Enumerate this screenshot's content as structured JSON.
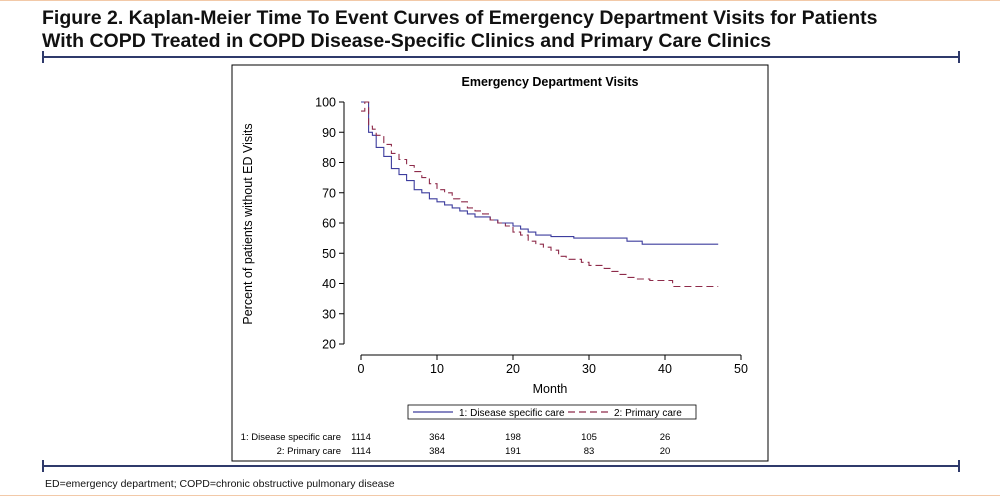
{
  "figure": {
    "title_line1": "Figure 2. Kaplan-Meier Time To Event Curves of Emergency Department Visits for Patients",
    "title_line2": "With COPD Treated in COPD Disease-Specific Clinics and Primary Care Clinics",
    "footnote": "ED=emergency department; COPD=chronic obstructive pulmonary disease"
  },
  "colors": {
    "rule": "#2f3a6b",
    "series_1": "#3d3d9e",
    "series_2": "#8e2b4a"
  },
  "chart_data": {
    "type": "line",
    "title": "Emergency Department Visits",
    "xlabel": "Month",
    "ylabel": "Percent of patients without ED Visits",
    "xlim": [
      0,
      50
    ],
    "ylim": [
      20,
      100
    ],
    "xticks": [
      0,
      10,
      20,
      30,
      40,
      50
    ],
    "yticks": [
      20,
      30,
      40,
      50,
      60,
      70,
      80,
      90,
      100
    ],
    "grid": false,
    "legend_position": "bottom",
    "series": [
      {
        "name": "1: Disease specific care",
        "style": "solid",
        "x": [
          0,
          0.5,
          1,
          1.5,
          2,
          3,
          4,
          5,
          6,
          7,
          8,
          9,
          10,
          11,
          12,
          13,
          14,
          15,
          16,
          17,
          18,
          19,
          20,
          21,
          22,
          23,
          24,
          25,
          26,
          27,
          28,
          29,
          30,
          31,
          32,
          33,
          34,
          35,
          36,
          37,
          38,
          39,
          40,
          41,
          42,
          43,
          44,
          45,
          46,
          47
        ],
        "y": [
          100,
          100,
          90,
          89,
          85,
          82,
          78,
          76,
          74,
          71,
          70,
          68,
          67,
          66,
          65,
          64,
          63,
          62,
          62,
          61,
          60,
          60,
          59,
          58,
          57,
          56,
          56,
          55.5,
          55.5,
          55.5,
          55,
          55,
          55,
          55,
          55,
          55,
          55,
          54,
          54,
          53,
          53,
          53,
          53,
          53,
          53,
          53,
          53,
          53,
          53,
          53
        ]
      },
      {
        "name": "2: Primary care",
        "style": "dashed",
        "x": [
          0,
          0.5,
          1,
          1.5,
          2,
          3,
          4,
          5,
          6,
          7,
          8,
          9,
          10,
          11,
          12,
          13,
          14,
          15,
          16,
          17,
          18,
          19,
          20,
          21,
          22,
          23,
          24,
          25,
          26,
          27,
          28,
          29,
          30,
          31,
          32,
          33,
          34,
          35,
          36,
          37,
          38,
          39,
          40,
          41,
          42,
          43,
          44,
          45,
          46,
          47
        ],
        "y": [
          97,
          100,
          92,
          91,
          89,
          86,
          83,
          81,
          79,
          77,
          75,
          73,
          71,
          70,
          68,
          67,
          65,
          64,
          63,
          61,
          60,
          59,
          57,
          56,
          54,
          53,
          52,
          51,
          49,
          48,
          48,
          47,
          46,
          46,
          45,
          44,
          43,
          42,
          41.5,
          41.5,
          41,
          41,
          41,
          39,
          39,
          39,
          39,
          39,
          39,
          39
        ]
      }
    ],
    "risk_table": {
      "rows": [
        {
          "label": "1: Disease specific care",
          "values": [
            "1114",
            "364",
            "198",
            "105",
            "26"
          ]
        },
        {
          "label": "2: Primary care",
          "values": [
            "1114",
            "384",
            "191",
            "83",
            "20"
          ]
        }
      ],
      "at_x": [
        0,
        10,
        20,
        30,
        40
      ]
    }
  }
}
